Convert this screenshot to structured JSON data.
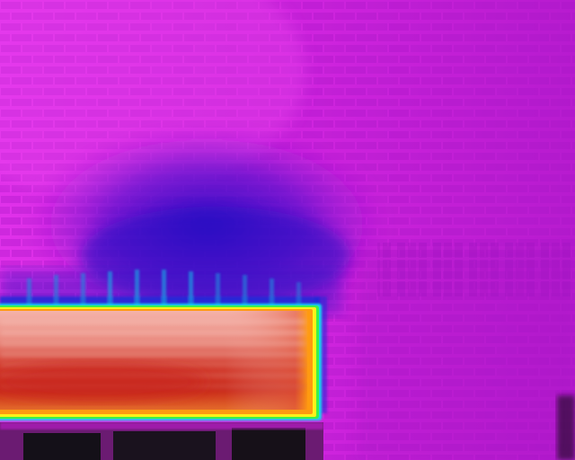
{
  "image": {
    "kind": "thermal-infrared-photograph",
    "subject": "brick-wall-with-heated-window-panel",
    "palette": "iron-rainbow",
    "colors": {
      "wall_base": "#c81ed6",
      "wall_warm": "#e22ee9",
      "wall_dark_right": "#b21bcc",
      "cold_zone": "#3a12c8",
      "cold_zone_edge": "#6a18d2",
      "mortar_line": "#ee44f2",
      "brick_shade": "#a615c4",
      "hot_center": "#f2a9a0",
      "hot_core": "#cf2a1c",
      "hot_edge_orange": "#ff9a10",
      "hot_edge_yellow": "#fff21a",
      "hot_edge_green": "#3ef04a",
      "hot_edge_cyan": "#18d8ee",
      "hot_edge_blue": "#1d2ad8",
      "window_dark": "#141018",
      "window_frame": "#6b1b72"
    }
  }
}
